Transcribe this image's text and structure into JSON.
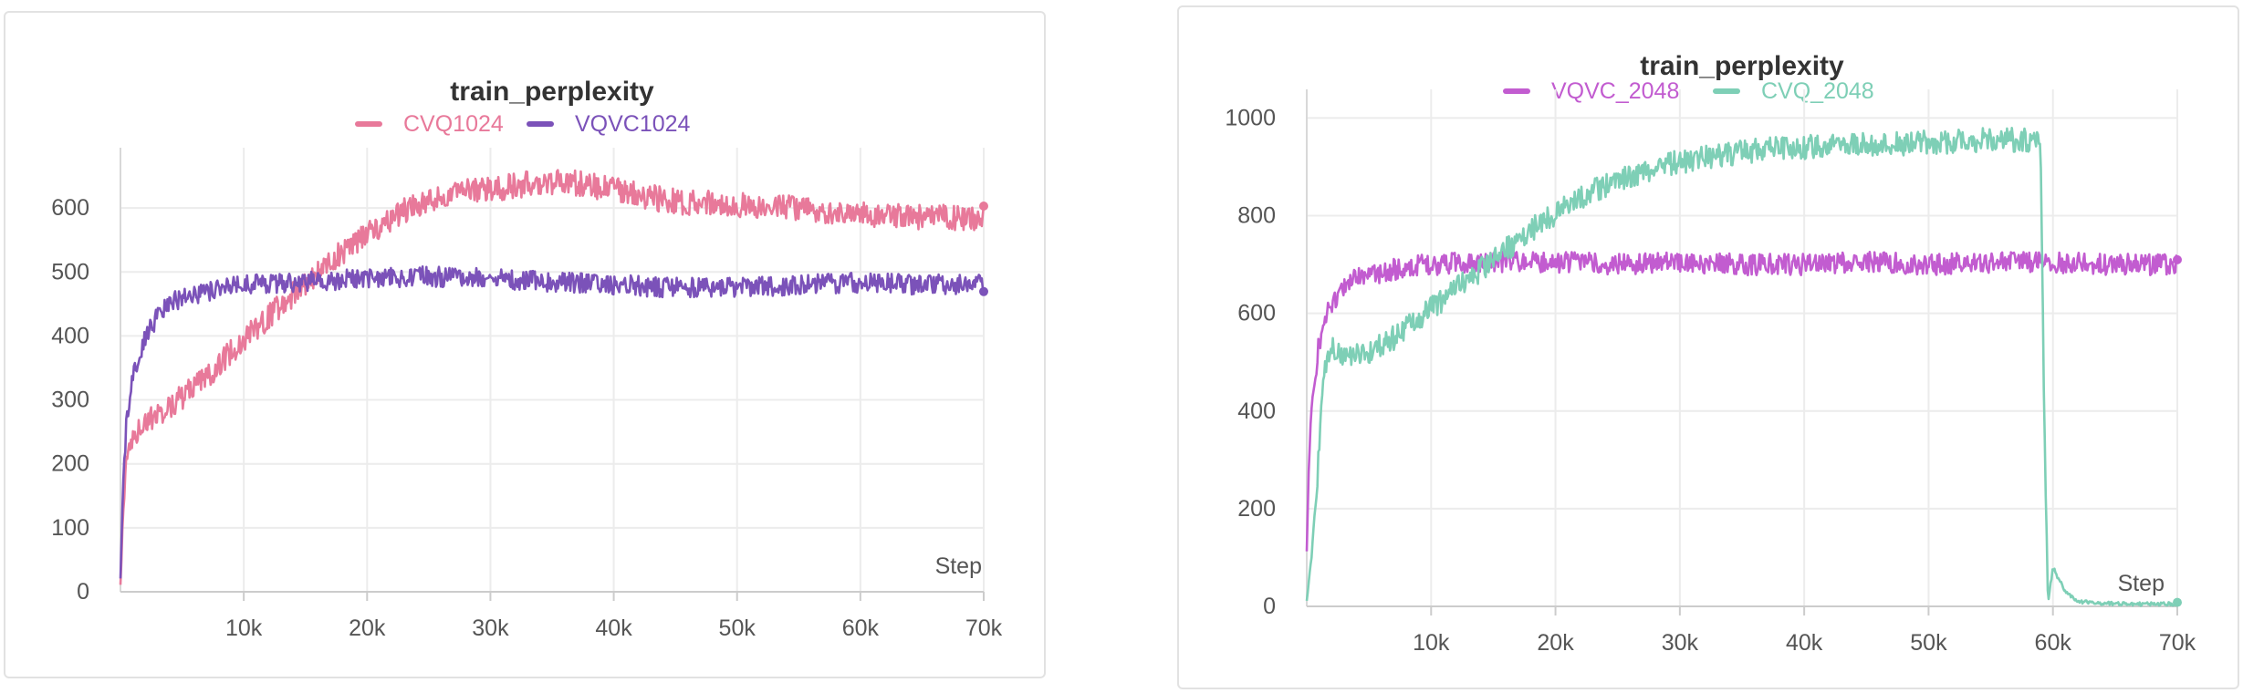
{
  "chart_data": [
    {
      "type": "line",
      "title": "train_perplexity",
      "xlabel": "Step",
      "ylabel": "",
      "xlim": [
        0,
        70000
      ],
      "ylim": [
        0,
        680
      ],
      "x_ticks": [
        10000,
        20000,
        30000,
        40000,
        50000,
        60000,
        70000
      ],
      "x_tick_labels": [
        "10k",
        "20k",
        "30k",
        "40k",
        "50k",
        "60k",
        "70k"
      ],
      "y_ticks": [
        0,
        100,
        200,
        300,
        400,
        500,
        600
      ],
      "y_tick_labels": [
        "0",
        "100",
        "200",
        "300",
        "400",
        "500",
        "600"
      ],
      "grid": true,
      "legend": "top",
      "series": [
        {
          "name": "CVQ1024",
          "color": "#e8799a",
          "noise": 20,
          "x": [
            0,
            200,
            500,
            1000,
            2000,
            4000,
            6000,
            8000,
            10000,
            12000,
            14000,
            16000,
            18000,
            20000,
            22000,
            24000,
            26000,
            28000,
            30000,
            32000,
            34000,
            36000,
            38000,
            40000,
            42000,
            45000,
            50000,
            55000,
            60000,
            65000,
            70000
          ],
          "y": [
            10,
            120,
            210,
            240,
            265,
            290,
            320,
            355,
            395,
            430,
            465,
            500,
            530,
            560,
            585,
            605,
            615,
            625,
            630,
            635,
            640,
            642,
            635,
            630,
            620,
            610,
            605,
            600,
            590,
            585,
            585
          ]
        },
        {
          "name": "VQVC1024",
          "color": "#7b52b9",
          "noise": 16,
          "x": [
            0,
            200,
            500,
            1000,
            1500,
            2000,
            3000,
            4000,
            5000,
            6000,
            8000,
            10000,
            15000,
            20000,
            25000,
            30000,
            35000,
            40000,
            45000,
            50000,
            55000,
            60000,
            65000,
            70000
          ],
          "y": [
            20,
            160,
            270,
            330,
            370,
            400,
            430,
            450,
            460,
            465,
            475,
            480,
            485,
            490,
            493,
            490,
            485,
            480,
            475,
            475,
            480,
            483,
            480,
            480
          ]
        }
      ]
    },
    {
      "type": "line",
      "title": "train_perplexity",
      "xlabel": "Step",
      "ylabel": "",
      "xlim": [
        0,
        70000
      ],
      "ylim": [
        0,
        1040
      ],
      "x_ticks": [
        10000,
        20000,
        30000,
        40000,
        50000,
        60000,
        70000
      ],
      "x_tick_labels": [
        "10k",
        "20k",
        "30k",
        "40k",
        "50k",
        "60k",
        "70k"
      ],
      "y_ticks": [
        0,
        200,
        400,
        600,
        800,
        1000
      ],
      "y_tick_labels": [
        "0",
        "200",
        "400",
        "600",
        "800",
        "1000"
      ],
      "grid": true,
      "legend": "top",
      "series": [
        {
          "name": "VQVC_2048",
          "color": "#c25cd0",
          "noise": 22,
          "x": [
            0,
            200,
            500,
            1000,
            1500,
            2000,
            3000,
            4000,
            6000,
            8000,
            10000,
            15000,
            20000,
            25000,
            30000,
            35000,
            40000,
            45000,
            50000,
            55000,
            60000,
            65000,
            70000
          ],
          "y": [
            110,
            300,
            440,
            540,
            590,
            620,
            655,
            670,
            685,
            695,
            700,
            705,
            705,
            700,
            705,
            700,
            700,
            705,
            700,
            705,
            705,
            700,
            700
          ]
        },
        {
          "name": "CVQ_2048",
          "color": "#7ecfb6",
          "noise": 25,
          "x": [
            0,
            300,
            700,
            1000,
            1300,
            1600,
            2000,
            3000,
            5000,
            7000,
            9000,
            11000,
            13000,
            15000,
            17000,
            19000,
            21000,
            23000,
            25000,
            27000,
            29000,
            31000,
            33000,
            35000,
            37000,
            40000,
            45000,
            50000,
            55000,
            58000,
            59000,
            59300,
            59600,
            60000,
            61000,
            62000,
            65000,
            70000
          ],
          "y": [
            10,
            80,
            200,
            330,
            450,
            510,
            530,
            510,
            520,
            550,
            590,
            630,
            670,
            710,
            750,
            790,
            820,
            850,
            870,
            890,
            905,
            915,
            925,
            930,
            935,
            940,
            945,
            950,
            955,
            955,
            960,
            400,
            5,
            80,
            30,
            10,
            5,
            5
          ]
        }
      ]
    }
  ]
}
